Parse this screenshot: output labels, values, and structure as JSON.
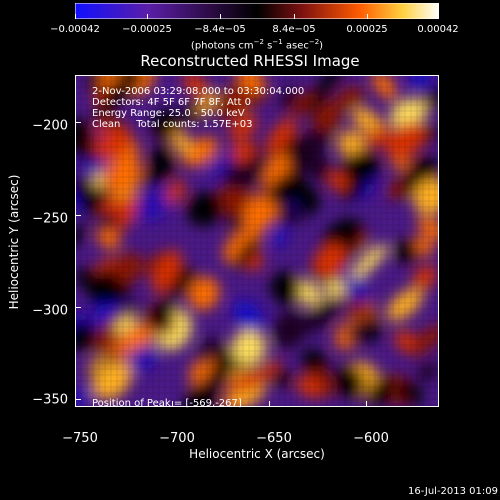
{
  "colorbar": {
    "ticks": [
      "−0.00042",
      "−0.00025",
      "−8.4e−05",
      "8.4e−05",
      "0.00025",
      "0.00042"
    ],
    "units_text": "(photons cm",
    "units_sup1": "−2",
    "units_mid1": " s",
    "units_sup2": "−1",
    "units_mid2": " asec",
    "units_sup3": "−2",
    "units_end": ")",
    "colors": [
      "#0000ff",
      "#6020a0",
      "#000000",
      "#a02000",
      "#ff8000",
      "#ffff40",
      "#ffffff"
    ]
  },
  "title": "Reconstructed RHESSI Image",
  "info": {
    "time_range": "2-Nov-2006 03:29:08.000 to 03:30:04.000",
    "detectors": "Detectors: 4F 5F 6F 7F 8F, Att 0",
    "energy": "Energy Range: 25.0 - 50.0 keV",
    "clean": "Clean     Total counts: 1.57E+03",
    "peak": "Position of Peak = [-569,-267]"
  },
  "axes": {
    "x_title": "Heliocentric X (arcsec)",
    "y_title": "Heliocentric Y (arcsec)",
    "x_ticks": [
      "−750",
      "−700",
      "−650",
      "−600"
    ],
    "y_ticks": [
      "−200",
      "−250",
      "−300",
      "−350"
    ],
    "xlim": [
      -750,
      -563
    ],
    "ylim": [
      -360,
      -180
    ]
  },
  "footer_date": "16-Jul-2013 01:09"
}
